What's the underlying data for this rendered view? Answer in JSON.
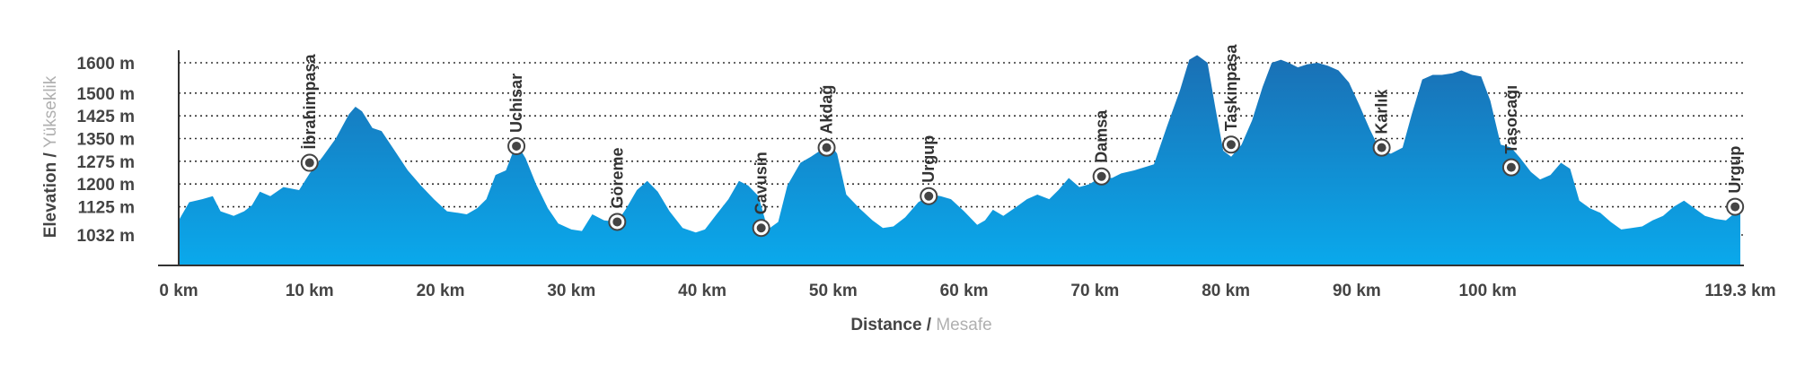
{
  "chart_data": {
    "type": "area",
    "xlabel": "Distance",
    "xlabel_secondary": "Mesafe",
    "ylabel": "Elevation",
    "ylabel_secondary": "Yükseklik",
    "xlim": [
      0,
      119.3
    ],
    "ylim": [
      960,
      1650
    ],
    "y_ticks": [
      1032,
      1125,
      1200,
      1275,
      1350,
      1425,
      1500,
      1600
    ],
    "y_tick_labels": [
      "1032 m",
      "1125 m",
      "1200 m",
      "1275 m",
      "1350 m",
      "1425 m",
      "1500 m",
      "1600 m"
    ],
    "x_ticks": [
      0,
      10,
      20,
      30,
      40,
      50,
      60,
      70,
      80,
      90,
      100,
      119.3
    ],
    "x_tick_labels": [
      "0 km",
      "10 km",
      "20 km",
      "30 km",
      "40 km",
      "50 km",
      "60 km",
      "70 km",
      "80 km",
      "90 km",
      "100 km",
      "119.3 km"
    ],
    "grid": "horizontal-dotted",
    "colors": {
      "fill_top": "#1a6fb4",
      "fill_bottom": "#0aa9ec",
      "grid": "#333333",
      "axis": "#333333"
    },
    "series": [
      {
        "x": [
          0,
          0.8,
          1.8,
          2.6,
          3.2,
          4.2,
          5.0,
          5.6,
          6.2,
          7.0,
          8.0,
          9.2,
          10.0,
          11.0,
          12.0,
          13.0,
          13.5,
          14.0,
          14.8,
          15.5,
          16.5,
          17.5,
          18.5,
          19.5,
          20.5,
          21.3,
          22.0,
          22.8,
          23.5,
          24.2,
          25.0,
          25.8,
          26.5,
          27.3,
          28.2,
          29.0,
          30.0,
          30.8,
          31.6,
          32.5,
          33.5,
          34.2,
          35.0,
          35.8,
          36.6,
          37.5,
          38.5,
          39.5,
          40.2,
          41.0,
          42.0,
          42.8,
          43.5,
          44.3,
          45.0,
          45.8,
          46.5,
          47.5,
          48.3,
          49.0,
          49.8,
          50.3,
          51.0,
          52.0,
          53.0,
          53.8,
          54.6,
          55.5,
          56.5,
          57.5,
          58.2,
          59.0,
          60.0,
          61.0,
          61.6,
          62.2,
          63.0,
          64.0,
          64.8,
          65.6,
          66.5,
          67.2,
          68.0,
          68.8,
          69.6,
          70.5,
          71.3,
          72.0,
          73.0,
          74.5,
          75.5,
          76.5,
          77.2,
          77.8,
          78.6,
          79.2,
          79.8,
          80.4,
          81.2,
          82.0,
          82.8,
          83.5,
          84.2,
          84.8,
          85.5,
          86.2,
          87.0,
          87.8,
          88.6,
          89.4,
          90.2,
          91.0,
          91.8,
          92.6,
          93.5,
          94.2,
          95.0,
          95.8,
          96.5,
          97.3,
          98.0,
          98.8,
          99.5,
          100.2,
          101.0,
          101.8,
          102.5,
          103.3,
          104.0,
          104.8,
          105.6,
          106.3,
          107.0,
          107.8,
          108.6,
          109.4,
          110.2,
          111.0,
          111.8,
          112.6,
          113.4,
          114.2,
          115.0,
          115.8,
          116.6,
          117.4,
          118.2,
          119.3
        ],
        "y": [
          1080,
          1140,
          1150,
          1160,
          1110,
          1095,
          1110,
          1130,
          1175,
          1160,
          1190,
          1180,
          1235,
          1290,
          1350,
          1430,
          1455,
          1440,
          1385,
          1375,
          1310,
          1245,
          1195,
          1150,
          1110,
          1105,
          1100,
          1120,
          1150,
          1230,
          1245,
          1335,
          1285,
          1200,
          1120,
          1070,
          1050,
          1045,
          1100,
          1080,
          1075,
          1120,
          1180,
          1210,
          1175,
          1110,
          1055,
          1040,
          1050,
          1095,
          1150,
          1210,
          1195,
          1160,
          1050,
          1075,
          1195,
          1270,
          1290,
          1310,
          1330,
          1300,
          1165,
          1120,
          1080,
          1055,
          1060,
          1090,
          1140,
          1165,
          1160,
          1150,
          1110,
          1065,
          1080,
          1115,
          1095,
          1125,
          1150,
          1165,
          1150,
          1180,
          1220,
          1190,
          1200,
          1225,
          1220,
          1235,
          1245,
          1265,
          1390,
          1510,
          1610,
          1625,
          1600,
          1450,
          1310,
          1290,
          1330,
          1410,
          1520,
          1600,
          1610,
          1600,
          1585,
          1595,
          1600,
          1590,
          1575,
          1535,
          1460,
          1380,
          1310,
          1300,
          1320,
          1430,
          1545,
          1560,
          1560,
          1565,
          1575,
          1560,
          1555,
          1475,
          1330,
          1320,
          1285,
          1240,
          1215,
          1230,
          1270,
          1250,
          1145,
          1120,
          1105,
          1075,
          1050,
          1055,
          1060,
          1080,
          1095,
          1125,
          1145,
          1120,
          1095,
          1085,
          1080,
          1120
        ]
      }
    ],
    "waypoints": [
      {
        "name": "İbrahimpaşa",
        "x": 10,
        "y": 1270
      },
      {
        "name": "Uchisar",
        "x": 25.8,
        "y": 1325
      },
      {
        "name": "Göreme",
        "x": 33.5,
        "y": 1075
      },
      {
        "name": "Cavusin",
        "x": 44.5,
        "y": 1055
      },
      {
        "name": "Akdağ",
        "x": 49.5,
        "y": 1320
      },
      {
        "name": "Urgup",
        "x": 57.3,
        "y": 1160
      },
      {
        "name": "Damsa",
        "x": 70.5,
        "y": 1225
      },
      {
        "name": "Taşkınpaşa",
        "x": 80.4,
        "y": 1330
      },
      {
        "name": "Karlık",
        "x": 91.9,
        "y": 1320
      },
      {
        "name": "Taşocağı",
        "x": 101.8,
        "y": 1255
      },
      {
        "name": "Urgup",
        "x": 118.9,
        "y": 1125
      }
    ]
  }
}
